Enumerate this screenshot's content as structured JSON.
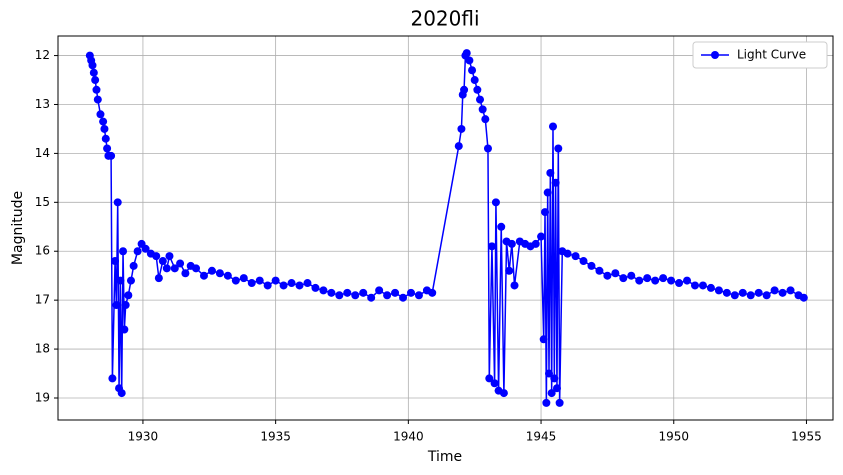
{
  "chart_data": {
    "type": "line",
    "title": "2020fli",
    "x_label": "Time",
    "y_label": "Magnitude",
    "x": [
      1928.0,
      1928.05,
      1928.1,
      1928.15,
      1928.2,
      1928.25,
      1928.3,
      1928.4,
      1928.5,
      1928.55,
      1928.6,
      1928.65,
      1928.7,
      1928.8,
      1928.85,
      1928.95,
      1929.0,
      1929.05,
      1929.1,
      1929.15,
      1929.2,
      1929.25,
      1929.3,
      1929.35,
      1929.45,
      1929.55,
      1929.65,
      1929.8,
      1929.95,
      1930.1,
      1930.3,
      1930.5,
      1930.6,
      1930.75,
      1930.9,
      1931.0,
      1931.2,
      1931.4,
      1931.6,
      1931.8,
      1932.0,
      1932.3,
      1932.6,
      1932.9,
      1933.2,
      1933.5,
      1933.8,
      1934.1,
      1934.4,
      1934.7,
      1935.0,
      1935.3,
      1935.6,
      1935.9,
      1936.2,
      1936.5,
      1936.8,
      1937.1,
      1937.4,
      1937.7,
      1938.0,
      1938.3,
      1938.6,
      1938.9,
      1939.2,
      1939.5,
      1939.8,
      1940.1,
      1940.4,
      1940.7,
      1940.9,
      1941.9,
      1942.0,
      1942.05,
      1942.1,
      1942.15,
      1942.2,
      1942.3,
      1942.4,
      1942.5,
      1942.6,
      1942.7,
      1942.8,
      1942.9,
      1943.0,
      1943.05,
      1943.15,
      1943.25,
      1943.3,
      1943.4,
      1943.5,
      1943.6,
      1943.7,
      1943.8,
      1943.9,
      1944.0,
      1944.2,
      1944.4,
      1944.6,
      1944.8,
      1945.0,
      1945.1,
      1945.15,
      1945.2,
      1945.25,
      1945.3,
      1945.35,
      1945.4,
      1945.45,
      1945.5,
      1945.55,
      1945.6,
      1945.65,
      1945.7,
      1945.8,
      1946.0,
      1946.3,
      1946.6,
      1946.9,
      1947.2,
      1947.5,
      1947.8,
      1948.1,
      1948.4,
      1948.7,
      1949.0,
      1949.3,
      1949.6,
      1949.9,
      1950.2,
      1950.5,
      1950.8,
      1951.1,
      1951.4,
      1951.7,
      1952.0,
      1952.3,
      1952.6,
      1952.9,
      1953.2,
      1953.5,
      1953.8,
      1954.1,
      1954.4,
      1954.7,
      1954.9
    ],
    "series": [
      {
        "name": "Light Curve",
        "color": "#0000ff",
        "values": [
          12.0,
          12.1,
          12.2,
          12.35,
          12.5,
          12.7,
          12.9,
          13.2,
          13.35,
          13.5,
          13.7,
          13.9,
          14.05,
          14.05,
          18.6,
          16.2,
          17.1,
          15.0,
          18.8,
          16.6,
          18.9,
          16.0,
          17.6,
          17.1,
          16.9,
          16.6,
          16.3,
          16.0,
          15.85,
          15.95,
          16.05,
          16.1,
          16.55,
          16.2,
          16.35,
          16.1,
          16.35,
          16.25,
          16.45,
          16.3,
          16.35,
          16.5,
          16.4,
          16.45,
          16.5,
          16.6,
          16.55,
          16.65,
          16.6,
          16.7,
          16.6,
          16.7,
          16.65,
          16.7,
          16.65,
          16.75,
          16.8,
          16.85,
          16.9,
          16.85,
          16.9,
          16.85,
          16.95,
          16.8,
          16.9,
          16.85,
          16.95,
          16.85,
          16.9,
          16.8,
          16.85,
          13.85,
          13.5,
          12.8,
          12.7,
          12.0,
          11.95,
          12.1,
          12.3,
          12.5,
          12.7,
          12.9,
          13.1,
          13.3,
          13.9,
          18.6,
          15.9,
          18.7,
          15.0,
          18.85,
          15.5,
          18.9,
          15.8,
          16.4,
          15.85,
          16.7,
          15.8,
          15.85,
          15.9,
          15.85,
          15.7,
          17.8,
          15.2,
          19.1,
          14.8,
          18.5,
          14.4,
          18.9,
          13.45,
          18.6,
          14.6,
          18.8,
          13.9,
          19.1,
          16.0,
          16.05,
          16.1,
          16.2,
          16.3,
          16.4,
          16.5,
          16.45,
          16.55,
          16.5,
          16.6,
          16.55,
          16.6,
          16.55,
          16.6,
          16.65,
          16.6,
          16.7,
          16.7,
          16.75,
          16.8,
          16.85,
          16.9,
          16.85,
          16.9,
          16.85,
          16.9,
          16.8,
          16.85,
          16.8,
          16.9,
          16.95
        ]
      }
    ],
    "xlim": [
      1926.8,
      1956.0
    ],
    "ylim": [
      19.45,
      11.6
    ],
    "xticks": [
      1930,
      1935,
      1940,
      1945,
      1950,
      1955
    ],
    "yticks": [
      12,
      13,
      14,
      15,
      16,
      17,
      18,
      19
    ],
    "grid": true,
    "legend": "upper right"
  }
}
